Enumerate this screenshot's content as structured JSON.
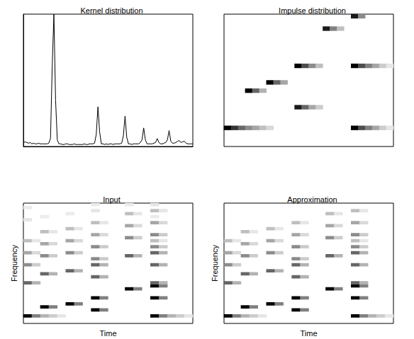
{
  "chart_data": [
    {
      "type": "line",
      "title": "Kernel distribution",
      "color": "#000000",
      "tick_labels": false,
      "xlim": [
        0,
        100
      ],
      "ylim": [
        0,
        1
      ],
      "x": [
        0,
        1,
        2,
        3,
        4,
        5,
        6,
        7,
        8,
        9,
        10,
        11,
        12,
        13,
        14,
        15,
        16,
        17,
        18,
        19,
        20,
        21,
        22,
        23,
        24,
        25,
        26,
        27,
        28,
        29,
        30,
        31,
        32,
        33,
        34,
        35,
        36,
        37,
        38,
        39,
        40,
        41,
        42,
        43,
        44,
        45,
        46,
        47,
        48,
        49,
        50,
        51,
        52,
        53,
        54,
        55,
        56,
        57,
        58,
        59,
        60,
        61,
        62,
        63,
        64,
        65,
        66,
        67,
        68,
        69,
        70,
        71,
        72,
        73,
        74,
        75,
        76,
        77,
        78,
        79,
        80,
        81,
        82,
        83,
        84,
        85,
        86,
        87,
        88,
        89,
        90,
        91,
        92,
        93,
        94,
        95,
        96,
        97,
        98,
        99,
        100
      ],
      "values": [
        0.03,
        0.035,
        0.03,
        0.025,
        0.03,
        0.02,
        0.025,
        0.02,
        0.02,
        0.025,
        0.02,
        0.02,
        0.02,
        0.02,
        0.02,
        0.025,
        0.06,
        0.6,
        1.0,
        0.35,
        0.05,
        0.02,
        0.02,
        0.015,
        0.015,
        0.02,
        0.02,
        0.015,
        0.015,
        0.015,
        0.02,
        0.015,
        0.015,
        0.015,
        0.015,
        0.015,
        0.02,
        0.015,
        0.015,
        0.02,
        0.02,
        0.02,
        0.025,
        0.09,
        0.3,
        0.11,
        0.02,
        0.02,
        0.015,
        0.02,
        0.015,
        0.02,
        0.02,
        0.015,
        0.02,
        0.02,
        0.02,
        0.02,
        0.025,
        0.08,
        0.23,
        0.07,
        0.02,
        0.02,
        0.015,
        0.02,
        0.02,
        0.02,
        0.02,
        0.03,
        0.05,
        0.14,
        0.05,
        0.02,
        0.02,
        0.02,
        0.02,
        0.025,
        0.03,
        0.06,
        0.03,
        0.02,
        0.02,
        0.025,
        0.03,
        0.05,
        0.12,
        0.04,
        0.025,
        0.025,
        0.03,
        0.04,
        0.045,
        0.03,
        0.035,
        0.04,
        0.025,
        0.02,
        0.02,
        0.02,
        0.02
      ]
    },
    {
      "type": "heatmap",
      "title": "Impulse distribution",
      "color": "#000000",
      "tick_labels": false,
      "xlim": [
        0,
        23
      ],
      "ylim": [
        0,
        31
      ],
      "color_range": [
        0,
        1
      ],
      "cells": [
        [
          0,
          4,
          1
        ],
        [
          1,
          4,
          0.8
        ],
        [
          2,
          4,
          0.6
        ],
        [
          3,
          4,
          0.45
        ],
        [
          4,
          4,
          0.35
        ],
        [
          5,
          4,
          0.25
        ],
        [
          6,
          4,
          0.15
        ],
        [
          3,
          13,
          1
        ],
        [
          4,
          13,
          0.6
        ],
        [
          5,
          13,
          0.3
        ],
        [
          6,
          15,
          1
        ],
        [
          7,
          15,
          0.6
        ],
        [
          8,
          15,
          0.35
        ],
        [
          10,
          19,
          1
        ],
        [
          11,
          19,
          0.7
        ],
        [
          12,
          19,
          0.45
        ],
        [
          13,
          19,
          0.25
        ],
        [
          10,
          9,
          0.9
        ],
        [
          11,
          9,
          0.6
        ],
        [
          12,
          9,
          0.35
        ],
        [
          13,
          9,
          0.2
        ],
        [
          14,
          28,
          0.9
        ],
        [
          15,
          28,
          0.5
        ],
        [
          16,
          28,
          0.25
        ],
        [
          18,
          31,
          0.9
        ],
        [
          19,
          31,
          0.45
        ],
        [
          18,
          19,
          1
        ],
        [
          19,
          19,
          0.7
        ],
        [
          20,
          19,
          0.5
        ],
        [
          21,
          19,
          0.35
        ],
        [
          22,
          19,
          0.2
        ],
        [
          23,
          19,
          0.1
        ],
        [
          18,
          4,
          1
        ],
        [
          19,
          4,
          0.7
        ],
        [
          20,
          4,
          0.5
        ],
        [
          21,
          4,
          0.35
        ],
        [
          22,
          4,
          0.2
        ],
        [
          23,
          4,
          0.1
        ]
      ]
    },
    {
      "type": "heatmap",
      "title": "Input",
      "xlabel": "Time",
      "ylabel": "Frequency",
      "color": "#000000",
      "tick_labels": false,
      "xlim": [
        0,
        19
      ],
      "ylim": [
        0,
        39
      ],
      "color_range": [
        0,
        1
      ],
      "cells": [
        [
          0,
          2,
          1
        ],
        [
          1,
          2,
          0.5
        ],
        [
          2,
          2,
          0.3
        ],
        [
          3,
          2,
          0.2
        ],
        [
          4,
          2,
          0.1
        ],
        [
          0,
          13,
          0.6
        ],
        [
          1,
          13,
          0.3
        ],
        [
          0,
          19,
          0.45
        ],
        [
          1,
          19,
          0.2
        ],
        [
          0,
          23,
          0.35
        ],
        [
          1,
          23,
          0.15
        ],
        [
          0,
          27,
          0.25
        ],
        [
          1,
          27,
          0.1
        ],
        [
          2,
          5,
          1
        ],
        [
          3,
          5,
          0.5
        ],
        [
          2,
          16,
          0.6
        ],
        [
          3,
          16,
          0.3
        ],
        [
          2,
          22,
          0.45
        ],
        [
          3,
          22,
          0.2
        ],
        [
          2,
          26,
          0.35
        ],
        [
          3,
          26,
          0.15
        ],
        [
          2,
          30,
          0.25
        ],
        [
          3,
          30,
          0.1
        ],
        [
          5,
          6,
          1
        ],
        [
          6,
          6,
          0.5
        ],
        [
          5,
          17,
          0.6
        ],
        [
          6,
          17,
          0.3
        ],
        [
          5,
          23,
          0.45
        ],
        [
          6,
          23,
          0.2
        ],
        [
          5,
          27,
          0.35
        ],
        [
          6,
          27,
          0.15
        ],
        [
          5,
          31,
          0.25
        ],
        [
          6,
          31,
          0.1
        ],
        [
          8,
          8,
          1
        ],
        [
          9,
          8,
          0.5
        ],
        [
          8,
          19,
          0.6
        ],
        [
          9,
          19,
          0.3
        ],
        [
          8,
          25,
          0.45
        ],
        [
          9,
          25,
          0.2
        ],
        [
          8,
          29,
          0.35
        ],
        [
          9,
          29,
          0.15
        ],
        [
          8,
          33,
          0.25
        ],
        [
          9,
          33,
          0.1
        ],
        [
          8,
          4,
          1
        ],
        [
          9,
          4,
          0.5
        ],
        [
          8,
          15,
          0.6
        ],
        [
          9,
          15,
          0.3
        ],
        [
          8,
          21,
          0.45
        ],
        [
          9,
          21,
          0.2
        ],
        [
          12,
          11,
          1
        ],
        [
          13,
          11,
          0.5
        ],
        [
          12,
          22,
          0.6
        ],
        [
          13,
          22,
          0.3
        ],
        [
          12,
          28,
          0.45
        ],
        [
          13,
          28,
          0.2
        ],
        [
          12,
          32,
          0.35
        ],
        [
          13,
          32,
          0.15
        ],
        [
          12,
          36,
          0.25
        ],
        [
          13,
          36,
          0.1
        ],
        [
          15,
          12,
          1
        ],
        [
          16,
          12,
          0.5
        ],
        [
          15,
          23,
          0.6
        ],
        [
          16,
          23,
          0.3
        ],
        [
          15,
          29,
          0.45
        ],
        [
          16,
          29,
          0.2
        ],
        [
          15,
          33,
          0.35
        ],
        [
          16,
          33,
          0.15
        ],
        [
          15,
          37,
          0.25
        ],
        [
          16,
          37,
          0.1
        ],
        [
          15,
          8,
          1
        ],
        [
          16,
          8,
          0.5
        ],
        [
          15,
          19,
          0.6
        ],
        [
          16,
          19,
          0.3
        ],
        [
          15,
          25,
          0.45
        ],
        [
          16,
          25,
          0.2
        ],
        [
          15,
          2,
          1
        ],
        [
          16,
          2,
          0.5
        ],
        [
          17,
          2,
          0.3
        ],
        [
          18,
          2,
          0.2
        ],
        [
          19,
          2,
          0.1
        ],
        [
          15,
          13,
          0.6
        ],
        [
          16,
          13,
          0.3
        ],
        [
          15,
          27,
          0.25
        ],
        [
          16,
          27,
          0.1
        ],
        [
          0,
          34,
          0.1
        ],
        [
          0,
          38,
          0.08
        ],
        [
          2,
          35,
          0.08
        ],
        [
          5,
          36,
          0.08
        ],
        [
          8,
          37,
          0.1
        ],
        [
          8,
          39,
          0.08
        ],
        [
          12,
          39,
          0.08
        ],
        [
          15,
          39,
          0.1
        ],
        [
          15,
          35,
          0.08
        ]
      ]
    },
    {
      "type": "heatmap",
      "title": "Approximation",
      "xlabel": "Time",
      "ylabel": "Frequency",
      "color": "#000000",
      "tick_labels": false,
      "xlim": [
        0,
        19
      ],
      "ylim": [
        0,
        39
      ],
      "color_range": [
        0,
        1
      ],
      "cells": [
        [
          0,
          2,
          1
        ],
        [
          1,
          2,
          0.5
        ],
        [
          2,
          2,
          0.3
        ],
        [
          3,
          2,
          0.2
        ],
        [
          4,
          2,
          0.1
        ],
        [
          0,
          13,
          0.6
        ],
        [
          1,
          13,
          0.3
        ],
        [
          0,
          19,
          0.45
        ],
        [
          1,
          19,
          0.2
        ],
        [
          0,
          23,
          0.35
        ],
        [
          1,
          23,
          0.15
        ],
        [
          0,
          27,
          0.25
        ],
        [
          1,
          27,
          0.1
        ],
        [
          2,
          5,
          1
        ],
        [
          3,
          5,
          0.5
        ],
        [
          2,
          16,
          0.6
        ],
        [
          3,
          16,
          0.3
        ],
        [
          2,
          22,
          0.45
        ],
        [
          3,
          22,
          0.2
        ],
        [
          2,
          26,
          0.35
        ],
        [
          3,
          26,
          0.15
        ],
        [
          2,
          30,
          0.25
        ],
        [
          3,
          30,
          0.1
        ],
        [
          5,
          6,
          1
        ],
        [
          6,
          6,
          0.5
        ],
        [
          5,
          17,
          0.6
        ],
        [
          6,
          17,
          0.3
        ],
        [
          5,
          23,
          0.45
        ],
        [
          6,
          23,
          0.2
        ],
        [
          5,
          27,
          0.35
        ],
        [
          6,
          27,
          0.15
        ],
        [
          5,
          31,
          0.25
        ],
        [
          6,
          31,
          0.1
        ],
        [
          8,
          8,
          1
        ],
        [
          9,
          8,
          0.5
        ],
        [
          8,
          19,
          0.6
        ],
        [
          9,
          19,
          0.3
        ],
        [
          8,
          25,
          0.45
        ],
        [
          9,
          25,
          0.2
        ],
        [
          8,
          29,
          0.35
        ],
        [
          9,
          29,
          0.15
        ],
        [
          8,
          33,
          0.25
        ],
        [
          9,
          33,
          0.1
        ],
        [
          8,
          4,
          1
        ],
        [
          9,
          4,
          0.5
        ],
        [
          8,
          15,
          0.6
        ],
        [
          9,
          15,
          0.3
        ],
        [
          8,
          21,
          0.45
        ],
        [
          9,
          21,
          0.2
        ],
        [
          12,
          11,
          1
        ],
        [
          13,
          11,
          0.5
        ],
        [
          12,
          22,
          0.6
        ],
        [
          13,
          22,
          0.3
        ],
        [
          12,
          28,
          0.45
        ],
        [
          13,
          28,
          0.2
        ],
        [
          12,
          32,
          0.35
        ],
        [
          13,
          32,
          0.15
        ],
        [
          12,
          36,
          0.25
        ],
        [
          13,
          36,
          0.1
        ],
        [
          15,
          12,
          1
        ],
        [
          16,
          12,
          0.5
        ],
        [
          15,
          23,
          0.6
        ],
        [
          16,
          23,
          0.3
        ],
        [
          15,
          29,
          0.45
        ],
        [
          16,
          29,
          0.2
        ],
        [
          15,
          33,
          0.35
        ],
        [
          16,
          33,
          0.15
        ],
        [
          15,
          37,
          0.25
        ],
        [
          16,
          37,
          0.1
        ],
        [
          15,
          8,
          1
        ],
        [
          16,
          8,
          0.5
        ],
        [
          15,
          19,
          0.6
        ],
        [
          16,
          19,
          0.3
        ],
        [
          15,
          25,
          0.45
        ],
        [
          16,
          25,
          0.2
        ],
        [
          15,
          2,
          1
        ],
        [
          16,
          2,
          0.5
        ],
        [
          17,
          2,
          0.3
        ],
        [
          18,
          2,
          0.2
        ],
        [
          19,
          2,
          0.1
        ],
        [
          15,
          13,
          0.6
        ],
        [
          16,
          13,
          0.3
        ],
        [
          15,
          27,
          0.25
        ],
        [
          16,
          27,
          0.1
        ]
      ]
    }
  ]
}
